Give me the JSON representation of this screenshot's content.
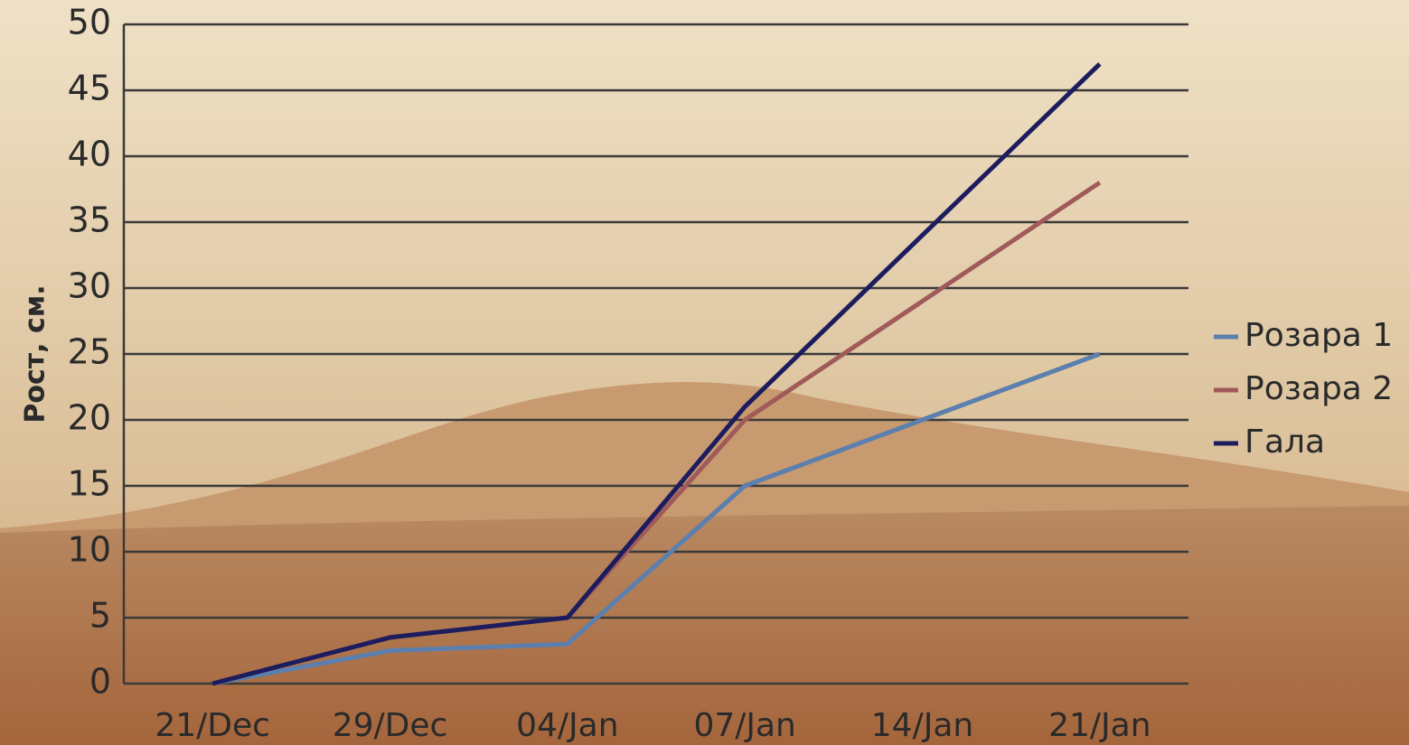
{
  "chart_data": {
    "type": "line",
    "y_label": "Рост, см.",
    "categories": [
      "21/Dec",
      "29/Dec",
      "04/Jan",
      "07/Jan",
      "14/Jan",
      "21/Jan"
    ],
    "series": [
      {
        "name": "Розара 1",
        "color": "#5b7fae",
        "values": [
          0,
          2.5,
          3,
          15,
          20,
          25
        ]
      },
      {
        "name": "Розара 2",
        "color": "#a05a5a",
        "values": [
          0,
          3.5,
          5,
          20,
          29,
          38
        ]
      },
      {
        "name": "Гала",
        "color": "#1c1c5e",
        "values": [
          0,
          3.5,
          5,
          21,
          34,
          47
        ]
      }
    ],
    "ylim": [
      0,
      50
    ],
    "yticks": [
      0,
      5,
      10,
      15,
      20,
      25,
      30,
      35,
      40,
      45,
      50
    ],
    "grid": true,
    "legend": "right"
  }
}
